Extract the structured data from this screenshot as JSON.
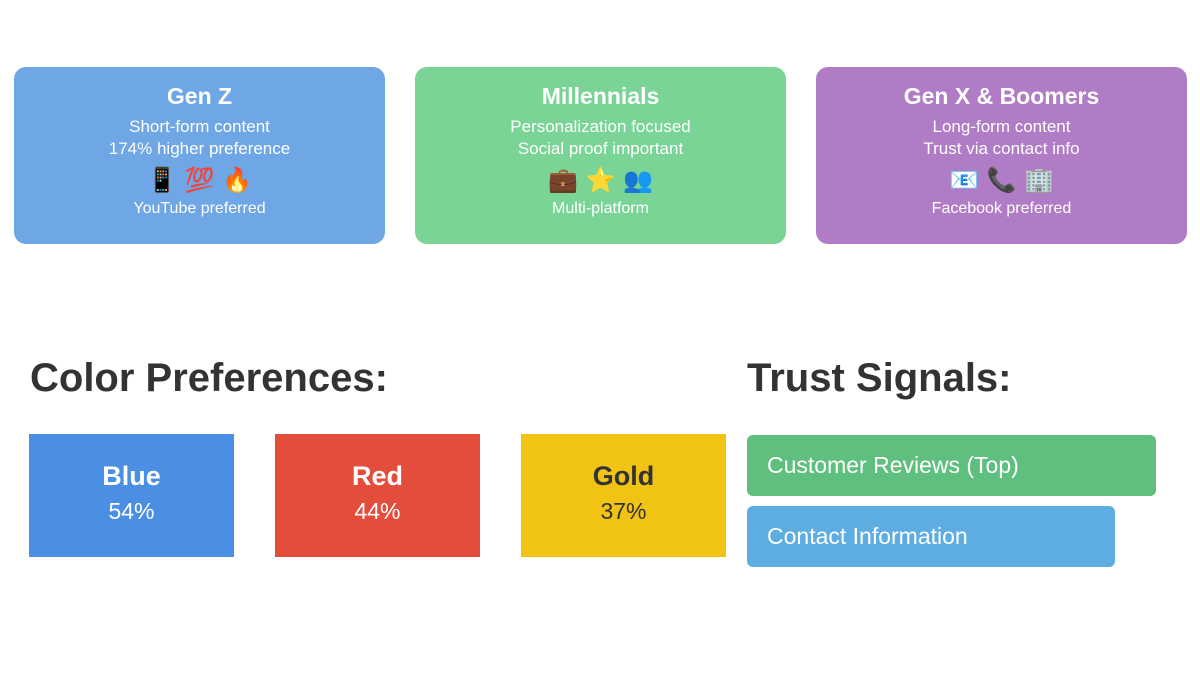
{
  "generations": [
    {
      "title": "Gen Z",
      "lines": [
        "Short-form content",
        "174% higher preference"
      ],
      "icons": "📱 💯 🔥",
      "note": "YouTube preferred"
    },
    {
      "title": "Millennials",
      "lines": [
        "Personalization focused",
        "Social proof important"
      ],
      "icons": "💼 ⭐ 👥",
      "note": "Multi-platform"
    },
    {
      "title": "Gen X & Boomers",
      "lines": [
        "Long-form content",
        "Trust via contact info"
      ],
      "icons": "📧 📞 🏢",
      "note": "Facebook preferred"
    }
  ],
  "color_preferences": {
    "title": "Color Preferences:",
    "items": [
      {
        "name": "Blue",
        "share": "54%"
      },
      {
        "name": "Red",
        "share": "44%"
      },
      {
        "name": "Gold",
        "share": "37%"
      }
    ]
  },
  "trust_signals": {
    "title": "Trust Signals:",
    "items": [
      "Customer Reviews (Top)",
      "Contact Information"
    ]
  }
}
